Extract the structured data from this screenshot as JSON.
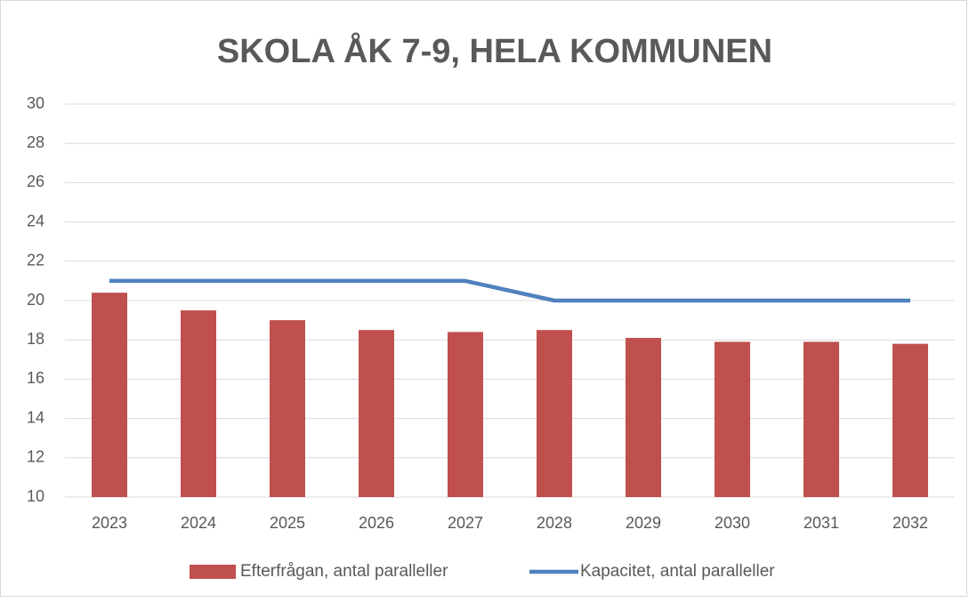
{
  "chart_data": {
    "type": "bar",
    "title": "SKOLA ÅK 7-9, HELA KOMMUNEN",
    "categories": [
      "2023",
      "2024",
      "2025",
      "2026",
      "2027",
      "2028",
      "2029",
      "2030",
      "2031",
      "2032"
    ],
    "series": [
      {
        "name": "Efterfrågan, antal paralleller",
        "type": "bar",
        "color": "#c0504d",
        "values": [
          20.4,
          19.5,
          19.0,
          18.5,
          18.4,
          18.5,
          18.1,
          17.9,
          17.9,
          17.8
        ]
      },
      {
        "name": "Kapacitet, antal paralleller",
        "type": "line",
        "color": "#4f81bd",
        "values": [
          21,
          21,
          21,
          21,
          21,
          20,
          20,
          20,
          20,
          20
        ]
      }
    ],
    "ylim": [
      10,
      30
    ],
    "yticks": [
      10,
      12,
      14,
      16,
      18,
      20,
      22,
      24,
      26,
      28,
      30
    ],
    "grid": true,
    "legend": "bottom"
  }
}
